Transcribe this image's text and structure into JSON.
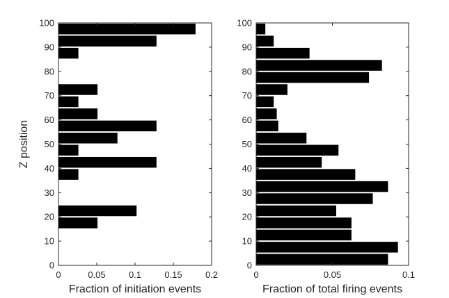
{
  "chart_data": [
    {
      "type": "bar",
      "orientation": "horizontal",
      "xlabel": "Fraction of initiation events",
      "ylabel": "Z position",
      "xlim": [
        0,
        0.2
      ],
      "ylim": [
        0,
        100
      ],
      "xticks": [
        "0",
        "0.05",
        "0.1",
        "0.15",
        "0.2"
      ],
      "yticks": [
        "0",
        "10",
        "20",
        "30",
        "40",
        "50",
        "60",
        "70",
        "80",
        "90",
        "100"
      ],
      "bar_color": "#000000",
      "bars": [
        {
          "y": 2.5,
          "value": 0
        },
        {
          "y": 7.5,
          "value": 0
        },
        {
          "y": 12.5,
          "value": 0
        },
        {
          "y": 17.5,
          "value": 0.051
        },
        {
          "y": 22.5,
          "value": 0.102
        },
        {
          "y": 27.5,
          "value": 0
        },
        {
          "y": 32.5,
          "value": 0
        },
        {
          "y": 37.5,
          "value": 0.026
        },
        {
          "y": 42.5,
          "value": 0.128
        },
        {
          "y": 47.5,
          "value": 0.026
        },
        {
          "y": 52.5,
          "value": 0.077
        },
        {
          "y": 57.5,
          "value": 0.128
        },
        {
          "y": 62.5,
          "value": 0.051
        },
        {
          "y": 67.5,
          "value": 0.026
        },
        {
          "y": 72.5,
          "value": 0.051
        },
        {
          "y": 77.5,
          "value": 0
        },
        {
          "y": 82.5,
          "value": 0
        },
        {
          "y": 87.5,
          "value": 0.026
        },
        {
          "y": 92.5,
          "value": 0.128
        },
        {
          "y": 97.5,
          "value": 0.179
        }
      ]
    },
    {
      "type": "bar",
      "orientation": "horizontal",
      "xlabel": "Fraction of total firing events",
      "ylabel": "",
      "xlim": [
        0,
        0.1
      ],
      "ylim": [
        0,
        100
      ],
      "xticks": [
        "0",
        "0.05",
        "0.1"
      ],
      "yticks": [
        "0",
        "10",
        "20",
        "30",
        "40",
        "50",
        "60",
        "70",
        "80",
        "90",
        "100"
      ],
      "bar_color": "#000000",
      "bars": [
        {
          "y": 2.5,
          "value": 0.0865
        },
        {
          "y": 7.5,
          "value": 0.093
        },
        {
          "y": 12.5,
          "value": 0.0625
        },
        {
          "y": 17.5,
          "value": 0.0625
        },
        {
          "y": 22.5,
          "value": 0.0525
        },
        {
          "y": 27.5,
          "value": 0.0765
        },
        {
          "y": 32.5,
          "value": 0.0865
        },
        {
          "y": 37.5,
          "value": 0.065
        },
        {
          "y": 42.5,
          "value": 0.043
        },
        {
          "y": 47.5,
          "value": 0.054
        },
        {
          "y": 52.5,
          "value": 0.033
        },
        {
          "y": 57.5,
          "value": 0.0145
        },
        {
          "y": 62.5,
          "value": 0.0135
        },
        {
          "y": 67.5,
          "value": 0.0115
        },
        {
          "y": 72.5,
          "value": 0.0205
        },
        {
          "y": 77.5,
          "value": 0.074
        },
        {
          "y": 82.5,
          "value": 0.0825
        },
        {
          "y": 87.5,
          "value": 0.035
        },
        {
          "y": 92.5,
          "value": 0.0115
        },
        {
          "y": 97.5,
          "value": 0.006
        }
      ]
    }
  ]
}
